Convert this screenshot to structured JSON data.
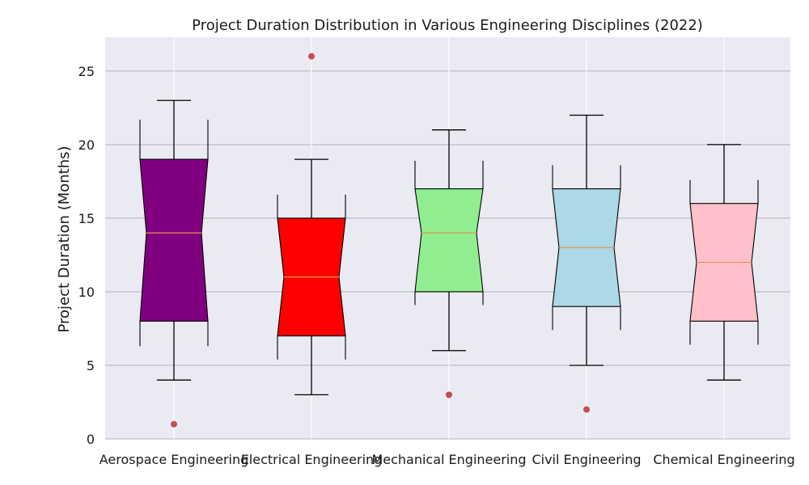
{
  "chart_data": {
    "type": "box",
    "title": "Project Duration Distribution in Various Engineering Disciplines (2022)",
    "xlabel": "",
    "ylabel": "Project Duration (Months)",
    "ylim": [
      0,
      27.3
    ],
    "yticks": [
      0,
      5,
      10,
      15,
      20,
      25
    ],
    "grid": true,
    "notched": true,
    "categories": [
      "Aerospace Engineering",
      "Electrical Engineering",
      "Mechanical Engineering",
      "Civil Engineering",
      "Chemical Engineering"
    ],
    "boxes": [
      {
        "label": "Aerospace Engineering",
        "min": 4,
        "q1": 8,
        "median": 14,
        "q3": 19,
        "max": 23,
        "notch_low": 6.3,
        "notch_high": 21.7,
        "outliers": [
          1
        ],
        "color": "#800080"
      },
      {
        "label": "Electrical Engineering",
        "min": 3,
        "q1": 7,
        "median": 11,
        "q3": 15,
        "max": 19,
        "notch_low": 5.4,
        "notch_high": 16.6,
        "outliers": [
          26
        ],
        "color": "#ff0000"
      },
      {
        "label": "Mechanical Engineering",
        "min": 6,
        "q1": 10,
        "median": 14,
        "q3": 17,
        "max": 21,
        "notch_low": 9.1,
        "notch_high": 18.9,
        "outliers": [
          3
        ],
        "color": "#90ee90"
      },
      {
        "label": "Civil Engineering",
        "min": 5,
        "q1": 9,
        "median": 13,
        "q3": 17,
        "max": 22,
        "notch_low": 7.4,
        "notch_high": 18.6,
        "outliers": [
          2
        ],
        "color": "#add8e6"
      },
      {
        "label": "Chemical Engineering",
        "min": 4,
        "q1": 8,
        "median": 12,
        "q3": 16,
        "max": 20,
        "notch_low": 6.4,
        "notch_high": 17.6,
        "outliers": [],
        "color": "#ffc0cb"
      }
    ],
    "colors": {
      "background": "#eaeaf2",
      "grid_horizontal": "#b0b0c8",
      "grid_vertical": "#ffffff",
      "median_line": "#e8914b",
      "outlier": "#c44e52",
      "box_edge": "#000000"
    }
  }
}
